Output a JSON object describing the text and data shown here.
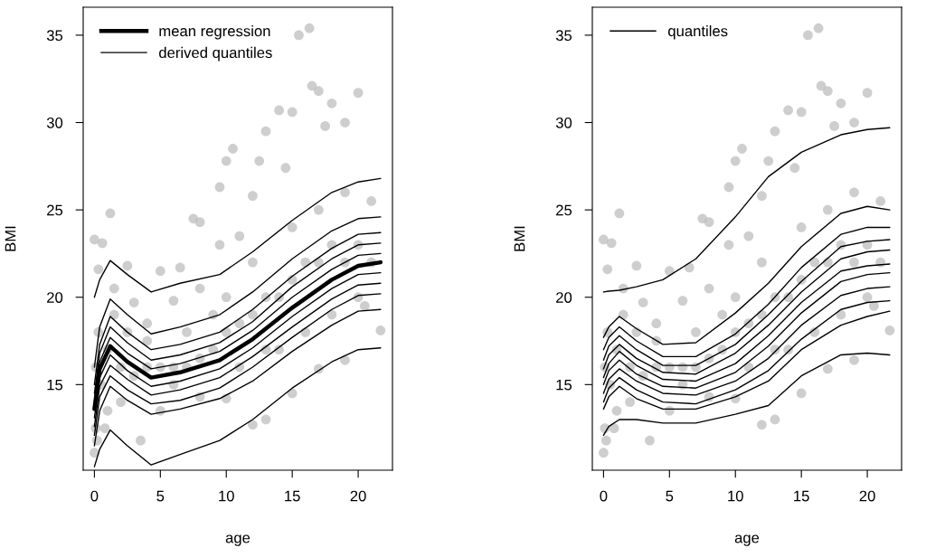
{
  "chart_data": [
    {
      "type": "line",
      "xlabel": "age",
      "ylabel": "BMI",
      "xlim": [
        -0.85,
        22.6
      ],
      "ylim": [
        10.1,
        36.6
      ],
      "xticks": [
        0,
        5,
        10,
        15,
        20
      ],
      "yticks": [
        15,
        20,
        25,
        30,
        35
      ],
      "grid": false,
      "legend": "top left",
      "line_style": "solid",
      "series": [
        {
          "type": "scatter",
          "marker": "circle",
          "color": "#bdbdbd",
          "x": [
            0,
            0,
            0.3,
            0.6,
            1.2,
            0.8,
            1.5,
            2.5,
            3,
            3.5,
            4,
            5,
            6,
            6.5,
            7.5,
            8,
            8,
            9.5,
            9.5,
            10,
            10.5,
            11,
            12,
            12.5,
            13,
            14,
            14.5,
            15,
            15.5,
            16.3,
            16.5,
            17,
            17.5,
            18,
            19,
            20,
            21,
            21.7,
            20.5,
            19,
            17,
            15,
            13,
            12,
            10,
            8,
            6,
            5,
            2,
            1,
            0.2,
            0.1,
            0.1,
            0.3,
            0.5,
            1,
            2,
            3,
            4,
            5,
            6,
            7,
            8,
            9,
            10,
            11,
            12,
            13,
            14,
            15,
            16,
            17,
            18,
            19,
            20,
            21,
            14,
            16,
            18,
            20,
            11,
            13,
            17,
            19,
            15,
            12,
            10,
            9,
            7,
            4,
            2.5,
            1.5
          ],
          "values": [
            23.3,
            11.1,
            21.6,
            23.1,
            24.8,
            12.5,
            20.5,
            21.8,
            19.7,
            11.8,
            18.5,
            21.5,
            19.8,
            21.7,
            24.5,
            24.3,
            20.5,
            23,
            26.3,
            27.8,
            28.5,
            23.5,
            25.8,
            27.8,
            29.5,
            30.7,
            27.4,
            30.6,
            35.0,
            35.4,
            32.1,
            31.8,
            29.8,
            31.1,
            30.0,
            31.7,
            25.5,
            18.1,
            19.5,
            16.4,
            15.9,
            14.5,
            13.0,
            12.7,
            14.2,
            14.3,
            15.0,
            13.5,
            14.0,
            13.5,
            11.8,
            12.5,
            16,
            18,
            15,
            17,
            16,
            15.5,
            16,
            16,
            16,
            16,
            16.5,
            17,
            18,
            18.5,
            19,
            20,
            20,
            21,
            22,
            22,
            23,
            22,
            23,
            22,
            17,
            18,
            19,
            20,
            16,
            17,
            25,
            26,
            24,
            22,
            20,
            19,
            18,
            17.5,
            18,
            19
          ]
        },
        {
          "name": "mean regression",
          "color": "#000000",
          "x": [
            0,
            0.4,
            1.2,
            2.5,
            4.3,
            6.5,
            9.5,
            12,
            15,
            18,
            20,
            21.7
          ],
          "values": [
            13.6,
            15.9,
            17.2,
            16.3,
            15.4,
            15.7,
            16.4,
            17.6,
            19.4,
            21.0,
            21.8,
            22.0
          ]
        },
        {
          "name": "derived quantiles",
          "color": "#000000",
          "x": [
            0,
            0.4,
            1.2,
            2.5,
            4.3,
            6.5,
            9.5,
            12,
            15,
            18,
            20,
            21.7
          ],
          "values": [
            20.0,
            21.0,
            22.1,
            21.3,
            20.3,
            20.8,
            21.3,
            22.6,
            24.4,
            26.0,
            26.6,
            26.8
          ]
        },
        {
          "color": "#000000",
          "x": [
            0,
            0.4,
            1.2,
            2.5,
            4.3,
            6.5,
            9.5,
            12,
            15,
            18,
            20,
            21.7
          ],
          "values": [
            16.0,
            18.3,
            19.9,
            19.0,
            17.9,
            18.3,
            19.0,
            20.3,
            22.2,
            23.8,
            24.5,
            24.6
          ]
        },
        {
          "color": "#000000",
          "x": [
            0,
            0.4,
            1.2,
            2.5,
            4.3,
            6.5,
            9.5,
            12,
            15,
            18,
            20,
            21.7
          ],
          "values": [
            15.0,
            17.3,
            18.9,
            18.0,
            17.0,
            17.3,
            18.0,
            19.3,
            21.2,
            22.8,
            23.6,
            23.7
          ]
        },
        {
          "color": "#000000",
          "x": [
            0,
            0.4,
            1.2,
            2.5,
            4.3,
            6.5,
            9.5,
            12,
            15,
            18,
            20,
            21.7
          ],
          "values": [
            14.5,
            16.8,
            18.3,
            17.4,
            16.4,
            16.7,
            17.4,
            18.6,
            20.6,
            22.2,
            23.0,
            23.1
          ]
        },
        {
          "color": "#000000",
          "x": [
            0,
            0.4,
            1.2,
            2.5,
            4.3,
            6.5,
            9.5,
            12,
            15,
            18,
            20,
            21.7
          ],
          "values": [
            14.0,
            16.3,
            17.7,
            16.8,
            15.9,
            16.2,
            16.9,
            18.1,
            20.0,
            21.6,
            22.4,
            22.5
          ]
        },
        {
          "color": "#000000",
          "x": [
            0,
            0.4,
            1.2,
            2.5,
            4.3,
            6.5,
            9.5,
            12,
            15,
            18,
            20,
            21.7
          ],
          "values": [
            13.1,
            15.4,
            16.7,
            15.8,
            14.9,
            15.2,
            15.9,
            17.1,
            18.9,
            20.5,
            21.3,
            21.4
          ]
        },
        {
          "color": "#000000",
          "x": [
            0,
            0.4,
            1.2,
            2.5,
            4.3,
            6.5,
            9.5,
            12,
            15,
            18,
            20,
            21.7
          ],
          "values": [
            12.6,
            14.9,
            16.1,
            15.3,
            14.4,
            14.7,
            15.4,
            16.6,
            18.3,
            19.9,
            20.7,
            20.8
          ]
        },
        {
          "color": "#000000",
          "x": [
            0,
            0.4,
            1.2,
            2.5,
            4.3,
            6.5,
            9.5,
            12,
            15,
            18,
            20,
            21.7
          ],
          "values": [
            12.1,
            14.3,
            15.5,
            14.7,
            13.9,
            14.1,
            14.8,
            16.0,
            17.7,
            19.3,
            20.1,
            20.2
          ]
        },
        {
          "color": "#000000",
          "x": [
            0,
            0.4,
            1.2,
            2.5,
            4.3,
            6.5,
            9.5,
            12,
            15,
            18,
            20,
            21.7
          ],
          "values": [
            11.5,
            13.5,
            14.9,
            14.1,
            13.3,
            13.6,
            14.2,
            15.2,
            16.9,
            18.4,
            19.2,
            19.3
          ]
        },
        {
          "color": "#000000",
          "x": [
            0,
            0.4,
            1.2,
            2.5,
            4.3,
            6.5,
            9.5,
            12,
            15,
            18,
            20,
            21.7
          ],
          "values": [
            10.3,
            11.3,
            12.4,
            11.5,
            10.4,
            11.0,
            11.8,
            13.0,
            14.8,
            16.3,
            17.0,
            17.1
          ]
        }
      ]
    },
    {
      "type": "line",
      "xlabel": "age",
      "ylabel": "BMI",
      "xlim": [
        -0.85,
        22.6
      ],
      "ylim": [
        10.1,
        36.6
      ],
      "xticks": [
        0,
        5,
        10,
        15,
        20
      ],
      "yticks": [
        15,
        20,
        25,
        30,
        35
      ],
      "grid": false,
      "legend": "top left",
      "line_style": "solid",
      "series": [
        {
          "type": "scatter",
          "marker": "circle",
          "color": "#bdbdbd",
          "x": [
            0,
            0,
            0.3,
            0.6,
            1.2,
            0.8,
            1.5,
            2.5,
            3,
            3.5,
            4,
            5,
            6,
            6.5,
            7.5,
            8,
            8,
            9.5,
            9.5,
            10,
            10.5,
            11,
            12,
            12.5,
            13,
            14,
            14.5,
            15,
            15.5,
            16.3,
            16.5,
            17,
            17.5,
            18,
            19,
            20,
            21,
            21.7,
            20.5,
            19,
            17,
            15,
            13,
            12,
            10,
            8,
            6,
            5,
            2,
            1,
            0.2,
            0.1,
            0.1,
            0.3,
            0.5,
            1,
            2,
            3,
            4,
            5,
            6,
            7,
            8,
            9,
            10,
            11,
            12,
            13,
            14,
            15,
            16,
            17,
            18,
            19,
            20,
            21,
            14,
            16,
            18,
            20,
            11,
            13,
            17,
            19,
            15,
            12,
            10,
            9,
            7,
            4,
            2.5,
            1.5
          ],
          "values": [
            23.3,
            11.1,
            21.6,
            23.1,
            24.8,
            12.5,
            20.5,
            21.8,
            19.7,
            11.8,
            18.5,
            21.5,
            19.8,
            21.7,
            24.5,
            24.3,
            20.5,
            23,
            26.3,
            27.8,
            28.5,
            23.5,
            25.8,
            27.8,
            29.5,
            30.7,
            27.4,
            30.6,
            35.0,
            35.4,
            32.1,
            31.8,
            29.8,
            31.1,
            30.0,
            31.7,
            25.5,
            18.1,
            19.5,
            16.4,
            15.9,
            14.5,
            13.0,
            12.7,
            14.2,
            14.3,
            15.0,
            13.5,
            14.0,
            13.5,
            11.8,
            12.5,
            16,
            18,
            15,
            17,
            16,
            15.5,
            16,
            16,
            16,
            16,
            16.5,
            17,
            18,
            18.5,
            19,
            20,
            20,
            21,
            22,
            22,
            23,
            22,
            23,
            22,
            17,
            18,
            19,
            20,
            16,
            17,
            25,
            26,
            24,
            22,
            20,
            19,
            18,
            17.5,
            18,
            19
          ]
        },
        {
          "name": "quantiles",
          "color": "#000000",
          "x": [
            0,
            0.4,
            1.2,
            2.5,
            4.5,
            7,
            10,
            12.5,
            15,
            18,
            20,
            21.7
          ],
          "values": [
            20.3,
            20.35,
            20.4,
            20.6,
            21.0,
            22.2,
            24.6,
            26.9,
            28.3,
            29.3,
            29.6,
            29.7
          ]
        },
        {
          "color": "#000000",
          "x": [
            0,
            0.4,
            1.2,
            2.5,
            4.5,
            7,
            10,
            12.5,
            15,
            18,
            20,
            21.7
          ],
          "values": [
            17.7,
            18.3,
            18.9,
            18.2,
            17.3,
            17.4,
            19.1,
            20.8,
            22.9,
            24.8,
            25.2,
            25.0
          ]
        },
        {
          "color": "#000000",
          "x": [
            0,
            0.4,
            1.2,
            2.5,
            4.5,
            7,
            10,
            12.5,
            15,
            18,
            20,
            21.7
          ],
          "values": [
            17.0,
            17.7,
            18.3,
            17.5,
            16.6,
            16.6,
            17.9,
            19.6,
            21.7,
            23.6,
            24.0,
            24.0
          ]
        },
        {
          "color": "#000000",
          "x": [
            0,
            0.4,
            1.2,
            2.5,
            4.5,
            7,
            10,
            12.5,
            15,
            18,
            20,
            21.7
          ],
          "values": [
            16.4,
            17.2,
            17.8,
            17.0,
            16.1,
            16.1,
            17.3,
            19.0,
            20.9,
            22.9,
            23.2,
            23.3
          ]
        },
        {
          "color": "#000000",
          "x": [
            0,
            0.4,
            1.2,
            2.5,
            4.5,
            7,
            10,
            12.5,
            15,
            18,
            20,
            21.7
          ],
          "values": [
            15.9,
            16.7,
            17.3,
            16.5,
            15.7,
            15.6,
            16.8,
            18.4,
            20.3,
            22.2,
            22.6,
            22.7
          ]
        },
        {
          "color": "#000000",
          "x": [
            0,
            0.4,
            1.2,
            2.5,
            4.5,
            7,
            10,
            12.5,
            15,
            18,
            20,
            21.7
          ],
          "values": [
            15.4,
            16.2,
            16.9,
            16.1,
            15.3,
            15.2,
            16.2,
            17.8,
            19.7,
            21.5,
            21.8,
            21.9
          ]
        },
        {
          "color": "#000000",
          "x": [
            0,
            0.4,
            1.2,
            2.5,
            4.5,
            7,
            10,
            12.5,
            15,
            18,
            20,
            21.7
          ],
          "values": [
            15.0,
            15.8,
            16.4,
            15.6,
            14.9,
            14.8,
            15.7,
            17.2,
            19.1,
            20.9,
            21.3,
            21.4
          ]
        },
        {
          "color": "#000000",
          "x": [
            0,
            0.4,
            1.2,
            2.5,
            4.5,
            7,
            10,
            12.5,
            15,
            18,
            20,
            21.7
          ],
          "values": [
            14.5,
            15.3,
            15.9,
            15.2,
            14.5,
            14.4,
            15.2,
            16.5,
            18.4,
            20.1,
            20.5,
            20.6
          ]
        },
        {
          "color": "#000000",
          "x": [
            0,
            0.4,
            1.2,
            2.5,
            4.5,
            7,
            10,
            12.5,
            15,
            18,
            20,
            21.7
          ],
          "values": [
            14.0,
            14.8,
            15.4,
            14.7,
            14.0,
            13.9,
            14.7,
            15.8,
            17.6,
            19.3,
            19.7,
            19.8
          ]
        },
        {
          "color": "#000000",
          "x": [
            0,
            0.4,
            1.2,
            2.5,
            4.5,
            7,
            10,
            12.5,
            15,
            18,
            20,
            21.7
          ],
          "values": [
            13.6,
            14.3,
            14.9,
            14.2,
            13.6,
            13.6,
            14.3,
            15.2,
            17.0,
            18.4,
            18.9,
            19.2
          ]
        },
        {
          "color": "#000000",
          "x": [
            0,
            0.4,
            1.2,
            2.5,
            4.5,
            7,
            10,
            12.5,
            15,
            18,
            20,
            21.7
          ],
          "values": [
            12.1,
            12.6,
            13.0,
            13.0,
            12.8,
            12.8,
            13.3,
            13.8,
            15.5,
            16.7,
            16.8,
            16.7
          ]
        }
      ]
    }
  ]
}
